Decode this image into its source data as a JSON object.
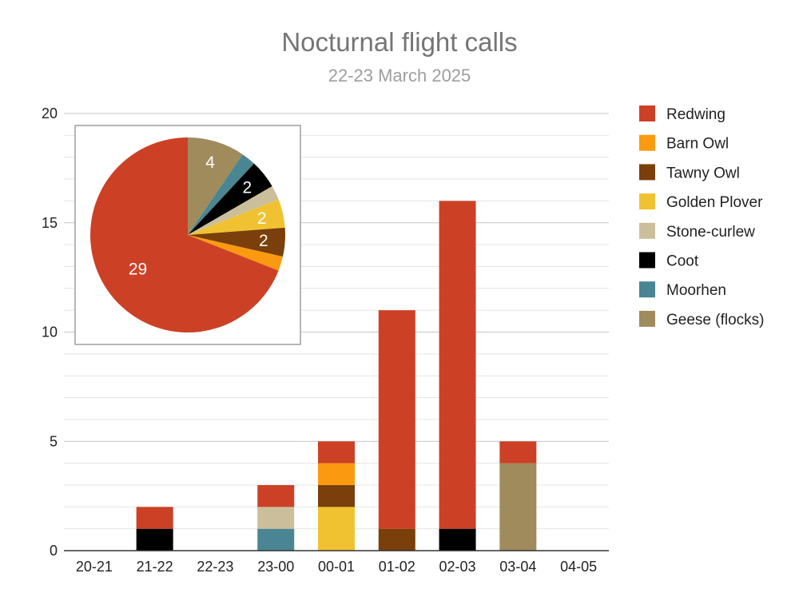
{
  "chart_data": [
    {
      "type": "bar",
      "stacked": true,
      "title": "Nocturnal flight calls",
      "subtitle": "22-23 March 2025",
      "categories": [
        "20-21",
        "21-22",
        "22-23",
        "23-00",
        "00-01",
        "01-02",
        "02-03",
        "03-04",
        "04-05"
      ],
      "ylim": [
        0,
        20
      ],
      "yticks": [
        0,
        5,
        10,
        15,
        20
      ],
      "minor_grid_step": 1,
      "grid": true,
      "legend_position": "right",
      "series": [
        {
          "name": "Moorhen",
          "color": "#4a8593",
          "values": [
            0,
            0,
            0,
            1,
            0,
            0,
            0,
            0,
            0
          ]
        },
        {
          "name": "Coot",
          "color": "#000000",
          "values": [
            0,
            1,
            0,
            0,
            0,
            0,
            1,
            0,
            0
          ]
        },
        {
          "name": "Golden Plover",
          "color": "#f0c232",
          "values": [
            0,
            0,
            0,
            0,
            2,
            0,
            0,
            0,
            0
          ]
        },
        {
          "name": "Stone-curlew",
          "color": "#cbbf9b",
          "values": [
            0,
            0,
            0,
            1,
            0,
            0,
            0,
            0,
            0
          ]
        },
        {
          "name": "Tawny Owl",
          "color": "#7a3f0a",
          "values": [
            0,
            0,
            0,
            0,
            1,
            1,
            0,
            0,
            0
          ]
        },
        {
          "name": "Barn Owl",
          "color": "#fb9a10",
          "values": [
            0,
            0,
            0,
            0,
            1,
            0,
            0,
            0,
            0
          ]
        },
        {
          "name": "Geese (flocks)",
          "color": "#a08b5d",
          "values": [
            0,
            0,
            0,
            0,
            0,
            0,
            0,
            4,
            0
          ]
        },
        {
          "name": "Redwing",
          "color": "#cc4126",
          "values": [
            0,
            1,
            0,
            1,
            1,
            10,
            15,
            1,
            0
          ]
        }
      ],
      "legend": [
        {
          "name": "Redwing",
          "color": "#cc4126"
        },
        {
          "name": "Barn Owl",
          "color": "#fb9a10"
        },
        {
          "name": "Tawny Owl",
          "color": "#7a3f0a"
        },
        {
          "name": "Golden Plover",
          "color": "#f0c232"
        },
        {
          "name": "Stone-curlew",
          "color": "#cbbf9b"
        },
        {
          "name": "Coot",
          "color": "#000000"
        },
        {
          "name": "Moorhen",
          "color": "#4a8593"
        },
        {
          "name": "Geese (flocks)",
          "color": "#a08b5d"
        }
      ]
    },
    {
      "type": "pie",
      "slices": [
        {
          "name": "Geese (flocks)",
          "value": 4,
          "color": "#a08b5d",
          "label": "4"
        },
        {
          "name": "Moorhen",
          "value": 1,
          "color": "#4a8593",
          "label": ""
        },
        {
          "name": "Coot",
          "value": 2,
          "color": "#000000",
          "label": "2"
        },
        {
          "name": "Stone-curlew",
          "value": 1,
          "color": "#cbbf9b",
          "label": ""
        },
        {
          "name": "Golden Plover",
          "value": 2,
          "color": "#f0c232",
          "label": "2"
        },
        {
          "name": "Tawny Owl",
          "value": 2,
          "color": "#7a3f0a",
          "label": "2"
        },
        {
          "name": "Barn Owl",
          "value": 1,
          "color": "#fb9a10",
          "label": ""
        },
        {
          "name": "Redwing",
          "value": 29,
          "color": "#cc4126",
          "label": "29"
        }
      ]
    }
  ]
}
